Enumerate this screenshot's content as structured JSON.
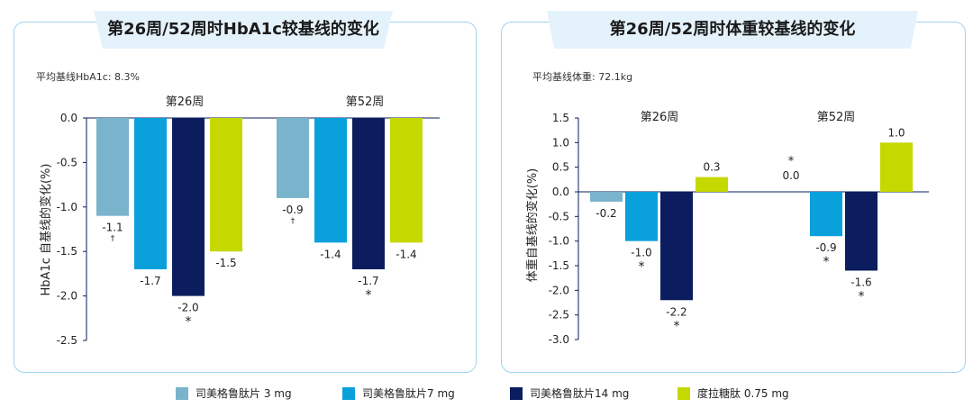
{
  "left_panel": {
    "title": "第26周/52周时HbA1c较基线的变化",
    "baseline_note": "平均基线HbA1c: 8.3%"
  },
  "right_panel": {
    "title": "第26周/52周时体重较基线的变化",
    "baseline_note": "平均基线体重: 72.1kg"
  },
  "legend": [
    {
      "label": "司美格鲁肽片 3 mg",
      "color": "#79b4cc"
    },
    {
      "label": "司美格鲁肽片7 mg",
      "color": "#0aa0dc"
    },
    {
      "label": "司美格鲁肽片14 mg",
      "color": "#0b1d5e"
    },
    {
      "label": "度拉糖肽 0.75 mg",
      "color": "#c5d800"
    }
  ],
  "chart_data": [
    {
      "type": "bar",
      "title": "第26周/52周时HbA1c较基线的变化",
      "ylabel": "HbA1c 自基线的变化(%)",
      "categories": [
        "第26周",
        "第52周"
      ],
      "ylim": [
        -2.5,
        0.0
      ],
      "yticks": [
        "0.0",
        "-0.5",
        "-1.0",
        "-1.5",
        "-2.0",
        "-2.5"
      ],
      "grid": false,
      "series": [
        {
          "name": "司美格鲁肽片 3 mg",
          "values": [
            -1.1,
            -0.9
          ],
          "labels": [
            "-1.1",
            "-0.9"
          ],
          "marks": [
            "†",
            "†"
          ]
        },
        {
          "name": "司美格鲁肽片7 mg",
          "values": [
            -1.7,
            -1.4
          ],
          "labels": [
            "-1.7",
            "-1.4"
          ],
          "marks": [
            "",
            ""
          ]
        },
        {
          "name": "司美格鲁肽片14 mg",
          "values": [
            -2.0,
            -1.7
          ],
          "labels": [
            "-2.0",
            "-1.7"
          ],
          "marks": [
            "*",
            "*"
          ]
        },
        {
          "name": "度拉糖肽 0.75 mg",
          "values": [
            -1.5,
            -1.4
          ],
          "labels": [
            "-1.5",
            "-1.4"
          ],
          "marks": [
            "",
            ""
          ]
        }
      ]
    },
    {
      "type": "bar",
      "title": "第26周/52周时体重较基线的变化",
      "ylabel": "体重自基线的变化(%)",
      "categories": [
        "第26周",
        "第52周"
      ],
      "ylim": [
        -3.0,
        1.5
      ],
      "yticks": [
        "1.5",
        "1.0",
        "0.5",
        "0.0",
        "-0.5",
        "-1.0",
        "-1.5",
        "-2.0",
        "-2.5",
        "-3.0"
      ],
      "grid": false,
      "series": [
        {
          "name": "司美格鲁肽片 3 mg",
          "values": [
            -0.2,
            0.0
          ],
          "labels": [
            "-0.2",
            "0.0"
          ],
          "marks": [
            "",
            "*"
          ]
        },
        {
          "name": "司美格鲁肽片7 mg",
          "values": [
            -1.0,
            -0.9
          ],
          "labels": [
            "-1.0",
            "-0.9"
          ],
          "marks": [
            "*",
            "*"
          ]
        },
        {
          "name": "司美格鲁肽片14 mg",
          "values": [
            -2.2,
            -1.6
          ],
          "labels": [
            "-2.2",
            "-1.6"
          ],
          "marks": [
            "*",
            "*"
          ]
        },
        {
          "name": "度拉糖肽 0.75 mg",
          "values": [
            0.3,
            1.0
          ],
          "labels": [
            "0.3",
            "1.0"
          ],
          "marks": [
            "",
            ""
          ]
        }
      ]
    }
  ]
}
